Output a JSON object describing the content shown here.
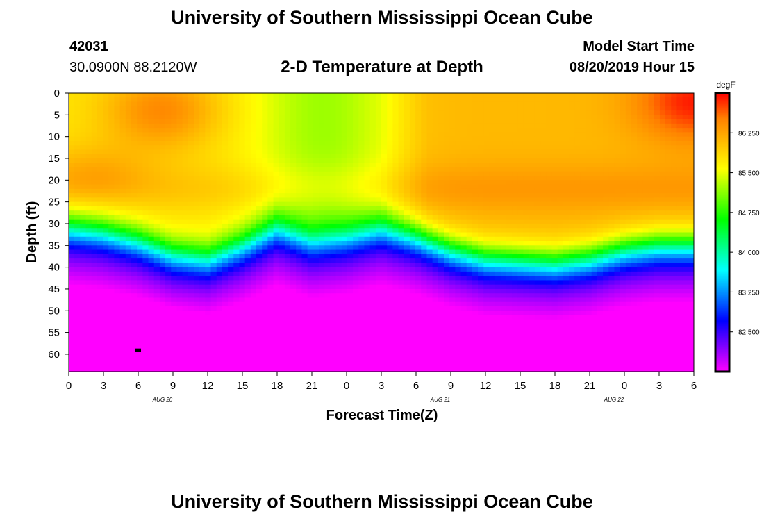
{
  "header": {
    "title": "University of Southern Mississippi Ocean Cube",
    "station_id": "42031",
    "station_coords": "30.0900N 88.2120W",
    "plot_title": "2-D Temperature at Depth",
    "model_label": "Model Start Time",
    "model_time": "08/20/2019 Hour 15"
  },
  "footer": {
    "title": "University of Southern Mississippi Ocean Cube"
  },
  "chart_data": {
    "type": "heatmap",
    "title": "2-D Temperature at Depth",
    "xlabel": "Forecast Time(Z)",
    "ylabel": "Depth (ft)",
    "x_ticks": [
      "0",
      "3",
      "6",
      "9",
      "12",
      "15",
      "18",
      "21",
      "0",
      "3",
      "6",
      "9",
      "12",
      "15",
      "18",
      "21",
      "0",
      "3",
      "6"
    ],
    "date_labels": [
      {
        "label": "AUG 20",
        "tick_index": 2.7
      },
      {
        "label": "AUG 21",
        "tick_index": 10.7
      },
      {
        "label": "AUG 22",
        "tick_index": 15.7
      }
    ],
    "y_ticks": [
      0,
      5,
      10,
      15,
      20,
      25,
      30,
      35,
      40,
      45,
      50,
      55,
      60
    ],
    "ylim": [
      0,
      64
    ],
    "colorbar": {
      "unit": "degF",
      "ticks": [
        "86.250",
        "85.500",
        "84.750",
        "84.000",
        "83.250",
        "82.500"
      ],
      "min": 81.75,
      "max": 87.0,
      "colors": [
        "#ff00ff",
        "#7f00ff",
        "#0000ff",
        "#0080ff",
        "#00ffff",
        "#00ff80",
        "#00ff00",
        "#80ff00",
        "#ffff00",
        "#ffc000",
        "#ff8000",
        "#ff0000"
      ]
    },
    "thermocline": {
      "x_hours": [
        0,
        3,
        6,
        9,
        12,
        15,
        18,
        21,
        24,
        27,
        30,
        33,
        36,
        39,
        42,
        45,
        48,
        51,
        54
      ],
      "depth_ft": [
        30,
        31,
        33,
        36,
        37,
        34,
        30,
        33,
        32,
        30,
        32,
        35,
        37,
        37.5,
        38,
        37,
        35,
        34,
        34
      ]
    },
    "surface_warm_spots": [
      {
        "hour": 8,
        "depth_ft": 4,
        "temp": 86.8
      },
      {
        "hour": 54,
        "depth_ft": 2,
        "temp": 86.9
      }
    ],
    "marker": {
      "hour": 6,
      "depth_ft": 59
    }
  }
}
